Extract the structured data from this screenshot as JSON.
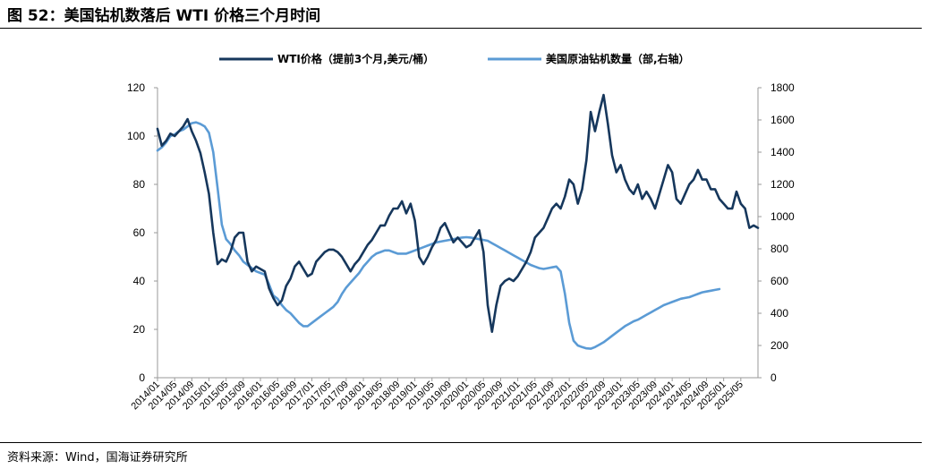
{
  "figure": {
    "title": "图 52：美国钻机数落后 WTI 价格三个月时间",
    "source": "资料来源：Wind，国海证券研究所"
  },
  "chart_data": {
    "type": "line",
    "legend_position": "top-center",
    "grid": false,
    "colors": {
      "wti": "#16375c",
      "rig": "#5b9bd5"
    },
    "y_left": {
      "min": 0,
      "max": 120,
      "ticks": [
        0,
        20,
        40,
        60,
        80,
        100,
        120
      ]
    },
    "y_right": {
      "min": 0,
      "max": 1800,
      "ticks": [
        0,
        200,
        400,
        600,
        800,
        1000,
        1200,
        1400,
        1600,
        1800
      ]
    },
    "x_range": [
      "2014-01",
      "2025-09"
    ],
    "x_ticks": [
      "2014/01",
      "2014/05",
      "2014/09",
      "2015/01",
      "2015/05",
      "2015/09",
      "2016/01",
      "2016/05",
      "2016/09",
      "2017/01",
      "2017/05",
      "2017/09",
      "2018/01",
      "2018/05",
      "2018/09",
      "2019/01",
      "2019/05",
      "2019/09",
      "2020/01",
      "2020/05",
      "2020/09",
      "2021/01",
      "2021/05",
      "2021/09",
      "2022/01",
      "2022/05",
      "2022/09",
      "2023/01",
      "2023/05",
      "2023/09",
      "2024/01",
      "2024/05",
      "2024/09",
      "2025/01",
      "2025/05"
    ],
    "series": [
      {
        "name": "WTI价格（提前3个月,美元/桶）",
        "axis": "left",
        "points": [
          [
            "2014-01",
            103
          ],
          [
            "2014-02",
            96
          ],
          [
            "2014-03",
            98
          ],
          [
            "2014-04",
            101
          ],
          [
            "2014-05",
            100
          ],
          [
            "2014-06",
            102
          ],
          [
            "2014-07",
            104
          ],
          [
            "2014-08",
            107
          ],
          [
            "2014-09",
            102
          ],
          [
            "2014-10",
            98
          ],
          [
            "2014-11",
            93
          ],
          [
            "2014-12",
            85
          ],
          [
            "2015-01",
            76
          ],
          [
            "2015-02",
            60
          ],
          [
            "2015-03",
            47
          ],
          [
            "2015-04",
            49
          ],
          [
            "2015-05",
            48
          ],
          [
            "2015-06",
            52
          ],
          [
            "2015-07",
            58
          ],
          [
            "2015-08",
            60
          ],
          [
            "2015-09",
            60
          ],
          [
            "2015-10",
            48
          ],
          [
            "2015-11",
            44
          ],
          [
            "2015-12",
            46
          ],
          [
            "2016-01",
            45
          ],
          [
            "2016-02",
            44
          ],
          [
            "2016-03",
            37
          ],
          [
            "2016-04",
            33
          ],
          [
            "2016-05",
            30
          ],
          [
            "2016-06",
            32
          ],
          [
            "2016-07",
            38
          ],
          [
            "2016-08",
            41
          ],
          [
            "2016-09",
            46
          ],
          [
            "2016-10",
            48
          ],
          [
            "2016-11",
            45
          ],
          [
            "2016-12",
            42
          ],
          [
            "2017-01",
            43
          ],
          [
            "2017-02",
            48
          ],
          [
            "2017-03",
            50
          ],
          [
            "2017-04",
            52
          ],
          [
            "2017-05",
            53
          ],
          [
            "2017-06",
            53
          ],
          [
            "2017-07",
            52
          ],
          [
            "2017-08",
            50
          ],
          [
            "2017-09",
            47
          ],
          [
            "2017-10",
            44
          ],
          [
            "2017-11",
            47
          ],
          [
            "2017-12",
            49
          ],
          [
            "2018-01",
            52
          ],
          [
            "2018-02",
            55
          ],
          [
            "2018-03",
            57
          ],
          [
            "2018-04",
            60
          ],
          [
            "2018-05",
            63
          ],
          [
            "2018-06",
            63
          ],
          [
            "2018-07",
            67
          ],
          [
            "2018-08",
            70
          ],
          [
            "2018-09",
            70
          ],
          [
            "2018-10",
            73
          ],
          [
            "2018-11",
            68
          ],
          [
            "2018-12",
            72
          ],
          [
            "2019-01",
            65
          ],
          [
            "2019-02",
            50
          ],
          [
            "2019-03",
            47
          ],
          [
            "2019-04",
            50
          ],
          [
            "2019-05",
            54
          ],
          [
            "2019-06",
            57
          ],
          [
            "2019-07",
            62
          ],
          [
            "2019-08",
            64
          ],
          [
            "2019-09",
            60
          ],
          [
            "2019-10",
            56
          ],
          [
            "2019-11",
            58
          ],
          [
            "2019-12",
            56
          ],
          [
            "2020-01",
            54
          ],
          [
            "2020-02",
            55
          ],
          [
            "2020-03",
            58
          ],
          [
            "2020-04",
            61
          ],
          [
            "2020-05",
            52
          ],
          [
            "2020-06",
            30
          ],
          [
            "2020-07",
            19
          ],
          [
            "2020-08",
            30
          ],
          [
            "2020-09",
            38
          ],
          [
            "2020-10",
            40
          ],
          [
            "2020-11",
            41
          ],
          [
            "2020-12",
            40
          ],
          [
            "2021-01",
            42
          ],
          [
            "2021-02",
            45
          ],
          [
            "2021-03",
            48
          ],
          [
            "2021-04",
            52
          ],
          [
            "2021-05",
            58
          ],
          [
            "2021-06",
            60
          ],
          [
            "2021-07",
            62
          ],
          [
            "2021-08",
            66
          ],
          [
            "2021-09",
            70
          ],
          [
            "2021-10",
            72
          ],
          [
            "2021-11",
            70
          ],
          [
            "2021-12",
            75
          ],
          [
            "2022-01",
            82
          ],
          [
            "2022-02",
            80
          ],
          [
            "2022-03",
            72
          ],
          [
            "2022-04",
            78
          ],
          [
            "2022-05",
            90
          ],
          [
            "2022-06",
            110
          ],
          [
            "2022-07",
            102
          ],
          [
            "2022-08",
            110
          ],
          [
            "2022-09",
            117
          ],
          [
            "2022-10",
            105
          ],
          [
            "2022-11",
            92
          ],
          [
            "2022-12",
            85
          ],
          [
            "2023-01",
            88
          ],
          [
            "2023-02",
            82
          ],
          [
            "2023-03",
            78
          ],
          [
            "2023-04",
            76
          ],
          [
            "2023-05",
            80
          ],
          [
            "2023-06",
            74
          ],
          [
            "2023-07",
            77
          ],
          [
            "2023-08",
            74
          ],
          [
            "2023-09",
            70
          ],
          [
            "2023-10",
            76
          ],
          [
            "2023-11",
            82
          ],
          [
            "2023-12",
            88
          ],
          [
            "2024-01",
            85
          ],
          [
            "2024-02",
            74
          ],
          [
            "2024-03",
            72
          ],
          [
            "2024-04",
            76
          ],
          [
            "2024-05",
            80
          ],
          [
            "2024-06",
            82
          ],
          [
            "2024-07",
            86
          ],
          [
            "2024-08",
            82
          ],
          [
            "2024-09",
            82
          ],
          [
            "2024-10",
            78
          ],
          [
            "2024-11",
            78
          ],
          [
            "2024-12",
            74
          ],
          [
            "2025-01",
            72
          ],
          [
            "2025-02",
            70
          ],
          [
            "2025-03",
            70
          ],
          [
            "2025-04",
            77
          ],
          [
            "2025-05",
            72
          ],
          [
            "2025-06",
            70
          ],
          [
            "2025-07",
            62
          ],
          [
            "2025-08",
            63
          ],
          [
            "2025-09",
            62
          ]
        ]
      },
      {
        "name": "美国原油钻机数量（部,右轴）",
        "axis": "right",
        "points": [
          [
            "2014-01",
            1410
          ],
          [
            "2014-02",
            1430
          ],
          [
            "2014-03",
            1460
          ],
          [
            "2014-04",
            1500
          ],
          [
            "2014-05",
            1510
          ],
          [
            "2014-06",
            1530
          ],
          [
            "2014-07",
            1540
          ],
          [
            "2014-08",
            1560
          ],
          [
            "2014-09",
            1580
          ],
          [
            "2014-10",
            1585
          ],
          [
            "2014-11",
            1575
          ],
          [
            "2014-12",
            1560
          ],
          [
            "2015-01",
            1520
          ],
          [
            "2015-02",
            1400
          ],
          [
            "2015-03",
            1180
          ],
          [
            "2015-04",
            950
          ],
          [
            "2015-05",
            860
          ],
          [
            "2015-06",
            830
          ],
          [
            "2015-07",
            790
          ],
          [
            "2015-08",
            760
          ],
          [
            "2015-09",
            720
          ],
          [
            "2015-10",
            700
          ],
          [
            "2015-11",
            680
          ],
          [
            "2015-12",
            660
          ],
          [
            "2016-01",
            650
          ],
          [
            "2016-02",
            640
          ],
          [
            "2016-03",
            580
          ],
          [
            "2016-04",
            510
          ],
          [
            "2016-05",
            490
          ],
          [
            "2016-06",
            450
          ],
          [
            "2016-07",
            420
          ],
          [
            "2016-08",
            400
          ],
          [
            "2016-09",
            370
          ],
          [
            "2016-10",
            340
          ],
          [
            "2016-11",
            320
          ],
          [
            "2016-12",
            320
          ],
          [
            "2017-01",
            340
          ],
          [
            "2017-02",
            360
          ],
          [
            "2017-03",
            380
          ],
          [
            "2017-04",
            400
          ],
          [
            "2017-05",
            420
          ],
          [
            "2017-06",
            440
          ],
          [
            "2017-07",
            470
          ],
          [
            "2017-08",
            520
          ],
          [
            "2017-09",
            560
          ],
          [
            "2017-10",
            590
          ],
          [
            "2017-11",
            620
          ],
          [
            "2017-12",
            650
          ],
          [
            "2018-01",
            690
          ],
          [
            "2018-02",
            720
          ],
          [
            "2018-03",
            750
          ],
          [
            "2018-04",
            770
          ],
          [
            "2018-05",
            780
          ],
          [
            "2018-06",
            790
          ],
          [
            "2018-07",
            790
          ],
          [
            "2018-08",
            780
          ],
          [
            "2018-09",
            770
          ],
          [
            "2018-10",
            770
          ],
          [
            "2018-11",
            770
          ],
          [
            "2018-12",
            780
          ],
          [
            "2019-01",
            790
          ],
          [
            "2019-02",
            800
          ],
          [
            "2019-03",
            810
          ],
          [
            "2019-04",
            820
          ],
          [
            "2019-05",
            830
          ],
          [
            "2019-06",
            840
          ],
          [
            "2019-07",
            845
          ],
          [
            "2019-08",
            850
          ],
          [
            "2019-09",
            855
          ],
          [
            "2019-10",
            860
          ],
          [
            "2019-11",
            865
          ],
          [
            "2019-12",
            870
          ],
          [
            "2020-01",
            872
          ],
          [
            "2020-02",
            870
          ],
          [
            "2020-03",
            865
          ],
          [
            "2020-04",
            860
          ],
          [
            "2020-05",
            855
          ],
          [
            "2020-06",
            850
          ],
          [
            "2020-07",
            835
          ],
          [
            "2020-08",
            820
          ],
          [
            "2020-09",
            805
          ],
          [
            "2020-10",
            790
          ],
          [
            "2020-11",
            775
          ],
          [
            "2020-12",
            760
          ],
          [
            "2021-01",
            745
          ],
          [
            "2021-02",
            730
          ],
          [
            "2021-03",
            715
          ],
          [
            "2021-04",
            700
          ],
          [
            "2021-05",
            690
          ],
          [
            "2021-06",
            680
          ],
          [
            "2021-07",
            675
          ],
          [
            "2021-08",
            680
          ],
          [
            "2021-09",
            685
          ],
          [
            "2021-10",
            690
          ],
          [
            "2021-11",
            660
          ],
          [
            "2021-12",
            520
          ],
          [
            "2022-01",
            340
          ],
          [
            "2022-02",
            230
          ],
          [
            "2022-03",
            200
          ],
          [
            "2022-04",
            190
          ],
          [
            "2022-05",
            182
          ],
          [
            "2022-06",
            180
          ],
          [
            "2022-07",
            190
          ],
          [
            "2022-08",
            205
          ],
          [
            "2022-09",
            220
          ],
          [
            "2022-10",
            240
          ],
          [
            "2022-11",
            260
          ],
          [
            "2022-12",
            280
          ],
          [
            "2023-01",
            300
          ],
          [
            "2023-02",
            320
          ],
          [
            "2023-03",
            335
          ],
          [
            "2023-04",
            350
          ],
          [
            "2023-05",
            360
          ],
          [
            "2023-06",
            375
          ],
          [
            "2023-07",
            390
          ],
          [
            "2023-08",
            405
          ],
          [
            "2023-09",
            420
          ],
          [
            "2023-10",
            435
          ],
          [
            "2023-11",
            450
          ],
          [
            "2023-12",
            460
          ],
          [
            "2024-01",
            470
          ],
          [
            "2024-02",
            480
          ],
          [
            "2024-03",
            490
          ],
          [
            "2024-04",
            495
          ],
          [
            "2024-05",
            500
          ],
          [
            "2024-06",
            510
          ],
          [
            "2024-07",
            520
          ],
          [
            "2024-08",
            530
          ],
          [
            "2024-09",
            535
          ],
          [
            "2024-10",
            540
          ],
          [
            "2024-11",
            545
          ],
          [
            "2024-12",
            550
          ]
        ]
      }
    ]
  }
}
